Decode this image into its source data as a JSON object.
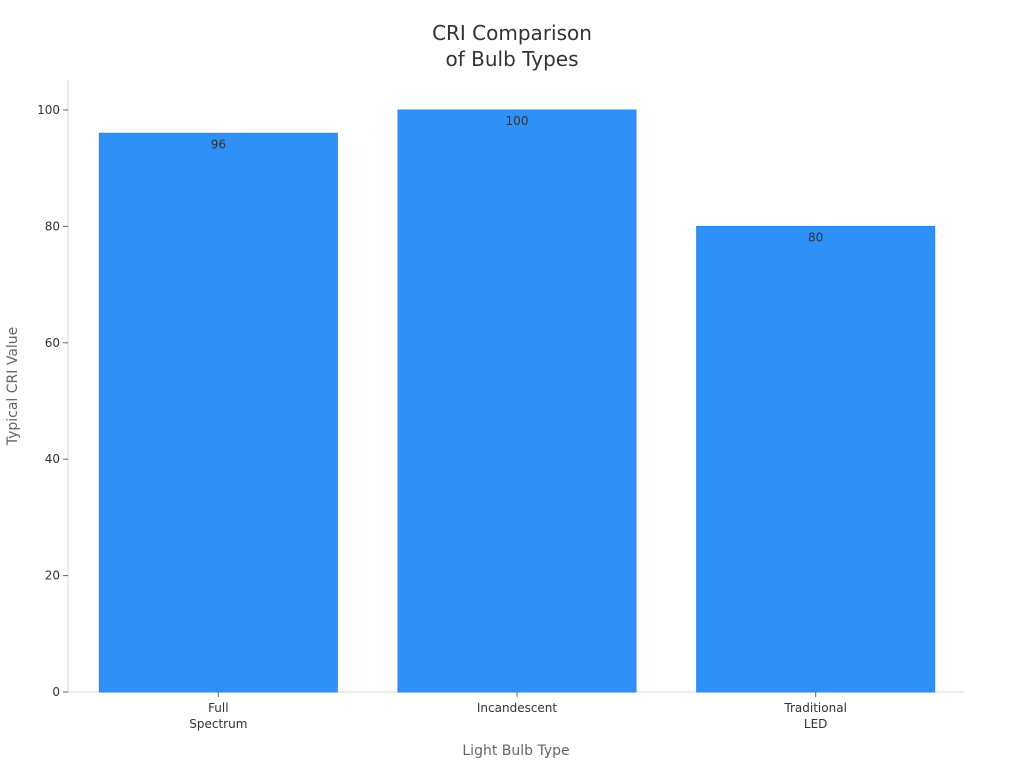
{
  "chart_data": {
    "type": "bar",
    "title": [
      "CRI Comparison",
      "of Bulb Types"
    ],
    "xlabel": "Light Bulb Type",
    "ylabel": "Typical CRI Value",
    "categories": [
      [
        "Full",
        "Spectrum"
      ],
      [
        "Incandescent"
      ],
      [
        "Traditional",
        "LED"
      ]
    ],
    "values": [
      96,
      100,
      80
    ],
    "data_labels": [
      "96",
      "100",
      "80"
    ],
    "yticks": [
      0,
      20,
      40,
      60,
      80,
      100
    ],
    "ylim": [
      0,
      105
    ],
    "grid": false,
    "legend": "none",
    "colors": {
      "bar": "#2f91f8",
      "bar_edge": "#2a85e6"
    }
  }
}
